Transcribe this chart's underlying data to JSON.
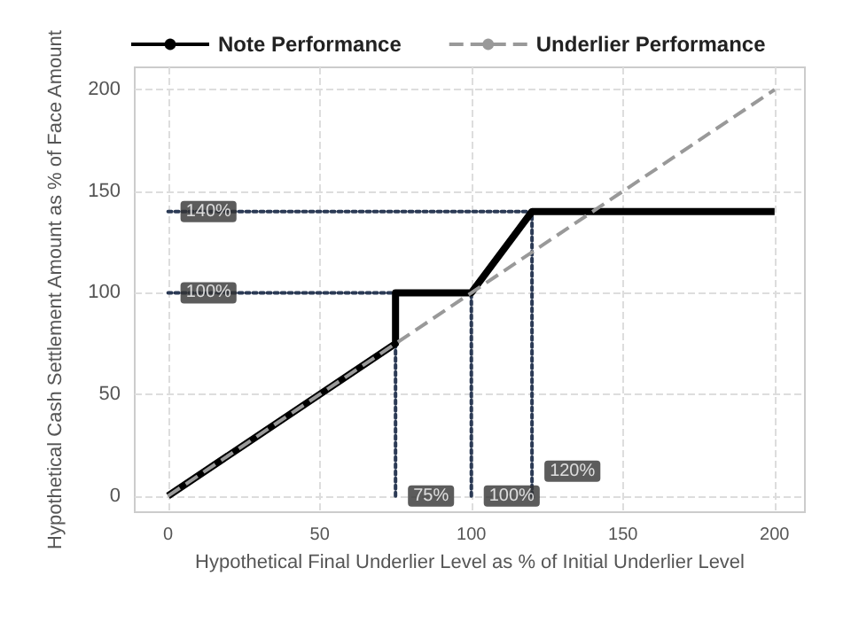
{
  "chart_data": {
    "type": "line",
    "xlabel": "Hypothetical Final Underlier Level as % of Initial Underlier Level",
    "ylabel": "Hypothetical Cash Settlement Amount as % of Face Amount",
    "xlim": [
      -11,
      210
    ],
    "ylim": [
      -8,
      211
    ],
    "xticks": [
      0,
      50,
      100,
      150,
      200
    ],
    "yticks": [
      0,
      50,
      100,
      150,
      200
    ],
    "grid": true,
    "legend": "top left",
    "marker": "none",
    "series": [
      {
        "name": "Note Performance",
        "color": "#000000",
        "line_style": "solid",
        "x": [
          0,
          75,
          75,
          100,
          120,
          200
        ],
        "values": [
          0,
          75,
          100,
          100,
          140,
          140
        ]
      },
      {
        "name": "Underlier Performance",
        "color": "#999999",
        "line_style": "dashed",
        "x": [
          0,
          200
        ],
        "values": [
          0,
          200
        ]
      },
      {
        "color": "#2b3a55",
        "line_style": "dotted",
        "x": [
          0,
          120
        ],
        "values": [
          140,
          140
        ]
      },
      {
        "color": "#2b3a55",
        "line_style": "dotted",
        "x": [
          0,
          75
        ],
        "values": [
          100,
          100
        ]
      },
      {
        "color": "#2b3a55",
        "line_style": "dotted",
        "x": [
          75,
          75
        ],
        "values": [
          0,
          75
        ]
      },
      {
        "color": "#2b3a55",
        "line_style": "dotted",
        "x": [
          100,
          100
        ],
        "values": [
          0,
          100
        ]
      },
      {
        "color": "#2b3a55",
        "line_style": "dotted",
        "x": [
          120,
          120
        ],
        "values": [
          0,
          140
        ]
      }
    ],
    "annotations": [
      {
        "text": "140%",
        "x": 0,
        "y": 140
      },
      {
        "text": "100%",
        "x": 0,
        "y": 100
      },
      {
        "text": "75%",
        "x": 75,
        "y": 0
      },
      {
        "text": "100%",
        "x": 100,
        "y": 0
      },
      {
        "text": "120%",
        "x": 120,
        "y": 0
      }
    ]
  }
}
